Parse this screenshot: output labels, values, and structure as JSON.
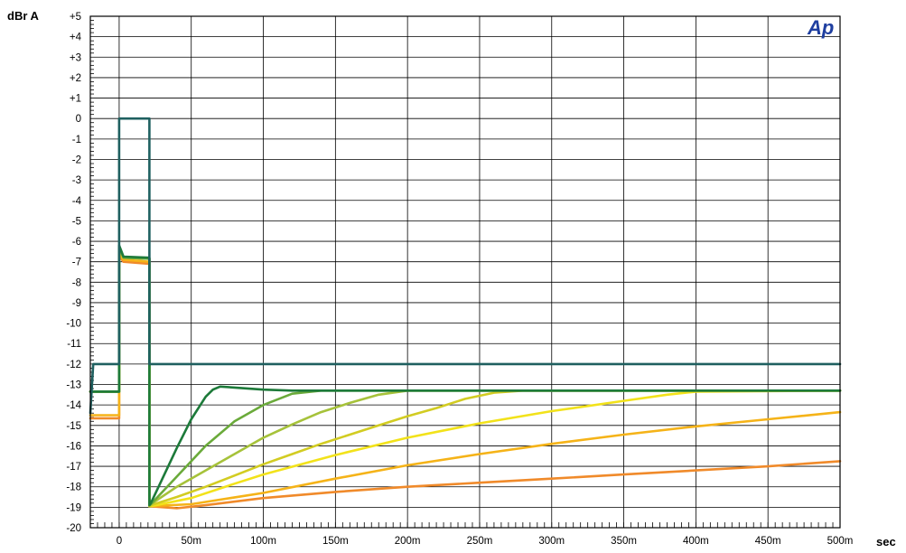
{
  "chart_data": {
    "type": "line",
    "ylabel": "dBr A",
    "xlabel": "sec",
    "logo": "Ap",
    "xlim": [
      -0.02,
      0.5
    ],
    "ylim": [
      -20,
      5
    ],
    "grid": true,
    "legend": "none",
    "x_ticks": [
      0,
      0.05,
      0.1,
      0.15,
      0.2,
      0.25,
      0.3,
      0.35,
      0.4,
      0.45,
      0.5
    ],
    "x_tick_labels": [
      "0",
      "50m",
      "100m",
      "150m",
      "200m",
      "250m",
      "300m",
      "350m",
      "400m",
      "450m",
      "500m"
    ],
    "y_ticks": [
      5,
      4,
      3,
      2,
      1,
      0,
      -1,
      -2,
      -3,
      -4,
      -5,
      -6,
      -7,
      -8,
      -9,
      -10,
      -11,
      -12,
      -13,
      -14,
      -15,
      -16,
      -17,
      -18,
      -19,
      -20
    ],
    "y_tick_labels": [
      "+5",
      "+4",
      "+3",
      "+2",
      "+1",
      "0",
      "-1",
      "-2",
      "-3",
      "-4",
      "-5",
      "-6",
      "-7",
      "-8",
      "-9",
      "-10",
      "-11",
      "-12",
      "-13",
      "-14",
      "-15",
      "-16",
      "-17",
      "-18",
      "-19",
      "-20"
    ],
    "colors": {
      "background": "#ffffff",
      "grid": "#000000",
      "logo": "#1f3fa0",
      "labels": "#000000"
    },
    "series": [
      {
        "color": "#1f6060",
        "points": [
          [
            -0.02,
            -14.4
          ],
          [
            -0.018,
            -12.0
          ],
          [
            0,
            -12.0
          ],
          [
            0,
            0
          ],
          [
            0.021,
            0
          ],
          [
            0.021,
            -12.0
          ],
          [
            0.5,
            -12.0
          ]
        ]
      },
      {
        "color": "#1d7a3a",
        "points": [
          [
            -0.02,
            -13.35
          ],
          [
            0,
            -13.35
          ],
          [
            0,
            -6.2
          ],
          [
            0.003,
            -6.75
          ],
          [
            0.021,
            -6.8
          ],
          [
            0.021,
            -18.9
          ],
          [
            0.022,
            -18.8
          ],
          [
            0.03,
            -17.6
          ],
          [
            0.04,
            -16.1
          ],
          [
            0.05,
            -14.7
          ],
          [
            0.06,
            -13.6
          ],
          [
            0.065,
            -13.25
          ],
          [
            0.07,
            -13.1
          ],
          [
            0.08,
            -13.15
          ],
          [
            0.1,
            -13.25
          ],
          [
            0.12,
            -13.3
          ],
          [
            0.5,
            -13.3
          ]
        ]
      },
      {
        "color": "#6aaa3a",
        "points": [
          [
            -0.02,
            -13.35
          ],
          [
            0,
            -13.35
          ],
          [
            0,
            -6.3
          ],
          [
            0.003,
            -6.8
          ],
          [
            0.021,
            -6.85
          ],
          [
            0.021,
            -18.9
          ],
          [
            0.022,
            -18.85
          ],
          [
            0.04,
            -17.5
          ],
          [
            0.06,
            -16.0
          ],
          [
            0.08,
            -14.8
          ],
          [
            0.1,
            -14.0
          ],
          [
            0.12,
            -13.45
          ],
          [
            0.14,
            -13.3
          ],
          [
            0.5,
            -13.3
          ]
        ]
      },
      {
        "color": "#a6c23a",
        "points": [
          [
            -0.02,
            -13.35
          ],
          [
            0,
            -13.35
          ],
          [
            0,
            -6.3
          ],
          [
            0.003,
            -6.8
          ],
          [
            0.021,
            -6.85
          ],
          [
            0.021,
            -18.9
          ],
          [
            0.022,
            -18.85
          ],
          [
            0.04,
            -18.0
          ],
          [
            0.06,
            -17.2
          ],
          [
            0.08,
            -16.4
          ],
          [
            0.1,
            -15.6
          ],
          [
            0.12,
            -14.95
          ],
          [
            0.14,
            -14.35
          ],
          [
            0.16,
            -13.9
          ],
          [
            0.18,
            -13.5
          ],
          [
            0.2,
            -13.3
          ],
          [
            0.5,
            -13.3
          ]
        ]
      },
      {
        "color": "#d2cc22",
        "points": [
          [
            -0.02,
            -13.35
          ],
          [
            0,
            -13.35
          ],
          [
            0,
            -6.3
          ],
          [
            0.003,
            -6.8
          ],
          [
            0.021,
            -6.85
          ],
          [
            0.021,
            -18.95
          ],
          [
            0.022,
            -18.9
          ],
          [
            0.04,
            -18.5
          ],
          [
            0.06,
            -18.0
          ],
          [
            0.08,
            -17.45
          ],
          [
            0.1,
            -16.9
          ],
          [
            0.12,
            -16.4
          ],
          [
            0.14,
            -15.9
          ],
          [
            0.16,
            -15.45
          ],
          [
            0.18,
            -15.0
          ],
          [
            0.2,
            -14.55
          ],
          [
            0.22,
            -14.15
          ],
          [
            0.24,
            -13.7
          ],
          [
            0.26,
            -13.4
          ],
          [
            0.28,
            -13.3
          ],
          [
            0.5,
            -13.3
          ]
        ]
      },
      {
        "color": "#f2e21a",
        "points": [
          [
            -0.02,
            -13.35
          ],
          [
            0,
            -13.35
          ],
          [
            0,
            -6.3
          ],
          [
            0.003,
            -6.8
          ],
          [
            0.021,
            -6.85
          ],
          [
            0.021,
            -18.95
          ],
          [
            0.022,
            -18.95
          ],
          [
            0.05,
            -18.55
          ],
          [
            0.08,
            -17.85
          ],
          [
            0.1,
            -17.4
          ],
          [
            0.15,
            -16.45
          ],
          [
            0.2,
            -15.6
          ],
          [
            0.25,
            -14.9
          ],
          [
            0.3,
            -14.3
          ],
          [
            0.35,
            -13.8
          ],
          [
            0.38,
            -13.5
          ],
          [
            0.4,
            -13.35
          ],
          [
            0.5,
            -13.3
          ]
        ]
      },
      {
        "color": "#f5b318",
        "points": [
          [
            -0.02,
            -14.5
          ],
          [
            0,
            -14.5
          ],
          [
            0,
            -6.6
          ],
          [
            0.003,
            -6.9
          ],
          [
            0.021,
            -7.0
          ],
          [
            0.021,
            -18.95
          ],
          [
            0.05,
            -18.85
          ],
          [
            0.1,
            -18.3
          ],
          [
            0.15,
            -17.6
          ],
          [
            0.2,
            -16.95
          ],
          [
            0.25,
            -16.4
          ],
          [
            0.3,
            -15.9
          ],
          [
            0.35,
            -15.45
          ],
          [
            0.4,
            -15.05
          ],
          [
            0.45,
            -14.7
          ],
          [
            0.5,
            -14.35
          ]
        ]
      },
      {
        "color": "#f08a2a",
        "points": [
          [
            -0.02,
            -14.65
          ],
          [
            0,
            -14.65
          ],
          [
            0,
            -6.7
          ],
          [
            0.003,
            -7.0
          ],
          [
            0.021,
            -7.1
          ],
          [
            0.021,
            -18.95
          ],
          [
            0.04,
            -19.05
          ],
          [
            0.06,
            -18.9
          ],
          [
            0.1,
            -18.55
          ],
          [
            0.15,
            -18.25
          ],
          [
            0.2,
            -18.0
          ],
          [
            0.25,
            -17.8
          ],
          [
            0.3,
            -17.6
          ],
          [
            0.35,
            -17.4
          ],
          [
            0.4,
            -17.2
          ],
          [
            0.45,
            -17.0
          ],
          [
            0.5,
            -16.75
          ]
        ]
      }
    ]
  }
}
